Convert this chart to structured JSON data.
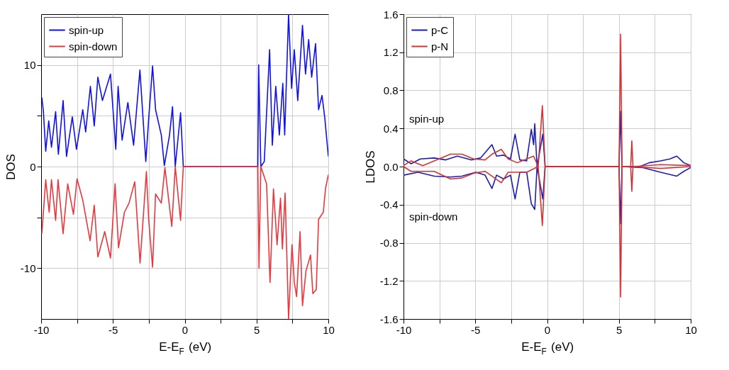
{
  "chart_data": [
    {
      "type": "line",
      "xlabel": "E-E$_{F}$ (eV)",
      "ylabel": "DOS",
      "xlim": [
        -10,
        10
      ],
      "ylim": [
        -15,
        15
      ],
      "xticks": [
        -10,
        {
          "value": -7.5,
          "label": null
        },
        -5,
        {
          "value": -2.5,
          "label": null
        },
        0,
        {
          "value": 2.5,
          "label": null
        },
        5,
        {
          "value": 7.5,
          "label": null
        },
        10
      ],
      "yticks": [
        -10,
        {
          "value": -5,
          "label": null
        },
        0,
        {
          "value": 5,
          "label": null
        },
        10
      ],
      "grid": true,
      "legend": "top left",
      "series": [
        {
          "name": "spin-up",
          "color": "#1010e8",
          "x": [
            -9.95,
            -9.84,
            -9.68,
            -9.47,
            -9.28,
            -8.99,
            -8.8,
            -8.47,
            -8.23,
            -7.83,
            -7.54,
            -7.1,
            -6.9,
            -6.57,
            -6.3,
            -6.05,
            -5.73,
            -5.17,
            -4.8,
            -4.64,
            -4.36,
            -3.96,
            -3.56,
            -3.12,
            -2.71,
            -2.51,
            -2.24,
            -2.03,
            -1.63,
            -1.42,
            -1.06,
            -0.85,
            -0.66,
            -0.29,
            -0.1,
            5.09,
            5.15,
            5.3,
            5.54,
            5.91,
            6.1,
            6.34,
            6.59,
            6.83,
            6.96,
            7.23,
            7.44,
            7.63,
            7.87,
            8.2,
            8.41,
            8.63,
            8.84,
            9.11,
            9.32,
            9.56,
            9.76,
            10
          ],
          "values": [
            6.8,
            5.4,
            1.5,
            4.5,
            1.9,
            5.4,
            1.2,
            6.5,
            1.0,
            4.9,
            1.7,
            5.6,
            3.4,
            7.9,
            4.0,
            8.8,
            6.5,
            9.1,
            1.7,
            7.9,
            2.6,
            6.3,
            2.1,
            9.5,
            0.5,
            4.7,
            9.9,
            5.6,
            3.1,
            0.1,
            3.1,
            5.9,
            0,
            5.3,
            0,
            0,
            10,
            0,
            0.5,
            11.5,
            2.1,
            7.9,
            3.1,
            8.2,
            3.1,
            15,
            7.7,
            11.5,
            6.5,
            13.9,
            9.1,
            12.5,
            8.8,
            12.1,
            5.6,
            7.0,
            4.7,
            1.0
          ]
        },
        {
          "name": "spin-down",
          "color": "#e8383d",
          "x": [
            -9.95,
            -9.68,
            -9.44,
            -9.28,
            -8.99,
            -8.82,
            -8.47,
            -8.15,
            -7.75,
            -7.5,
            -7.1,
            -6.59,
            -6.3,
            -6.05,
            -5.57,
            -5.17,
            -4.85,
            -4.61,
            -4.2,
            -3.88,
            -3.48,
            -3.11,
            -2.67,
            -2.51,
            -2.24,
            -2.03,
            -1.63,
            -1.38,
            -0.9,
            -0.66,
            -0.29,
            -0.1,
            5.09,
            5.17,
            5.3,
            5.7,
            5.94,
            6.18,
            6.43,
            6.67,
            6.8,
            6.99,
            7.23,
            7.47,
            7.63,
            7.79,
            8.03,
            8.2,
            8.44,
            8.76,
            8.92,
            9.16,
            9.32,
            9.65,
            9.8,
            10
          ],
          "values": [
            -6.6,
            -1.3,
            -4.5,
            -1.3,
            -5.3,
            -1.3,
            -6.6,
            -1.7,
            -4.7,
            -1.2,
            -3.3,
            -7.3,
            -3.8,
            -8.9,
            -6.4,
            -9.0,
            -1.7,
            -8.0,
            -4.5,
            -3.6,
            -1.5,
            -9.5,
            -0.5,
            -5.2,
            -9.9,
            -2.7,
            -3.6,
            -0.1,
            -5.9,
            0,
            -5.3,
            0,
            0,
            -10,
            0,
            -1.7,
            -11.4,
            -2.2,
            -7.7,
            -3.1,
            -8.1,
            -2.6,
            -15,
            -7.7,
            -11.4,
            -12.8,
            -6.4,
            -13.7,
            -10.3,
            -8.7,
            -12.5,
            -12.1,
            -5.2,
            -4.5,
            -2.2,
            -0.8
          ]
        }
      ]
    },
    {
      "type": "line",
      "xlabel": "E-E$_{F}$ (eV)",
      "ylabel": "LDOS",
      "xlim": [
        -10,
        10
      ],
      "ylim": [
        -1.6,
        1.6
      ],
      "xticks": [
        -10,
        {
          "value": -7.5,
          "label": null
        },
        -5,
        {
          "value": -2.5,
          "label": null
        },
        0,
        {
          "value": 2.5,
          "label": null
        },
        5,
        {
          "value": 7.5,
          "label": null
        },
        10
      ],
      "yticks": [
        -1.6,
        -1.2,
        -0.8,
        -0.4,
        {
          "value": 0,
          "label": "0.0"
        },
        0.4,
        0.8,
        1.2,
        1.6
      ],
      "grid": true,
      "legend": "top left",
      "annotations": [
        "spin-up",
        "spin-down"
      ],
      "series": [
        {
          "name": "p-C",
          "color": "#1c1cb0",
          "x": [
            -10,
            -9.47,
            -8.83,
            -7.86,
            -7.06,
            -6.25,
            -5.29,
            -4.64,
            -3.84,
            -3.52,
            -3.03,
            -2.55,
            -2.23,
            -1.9,
            -1.42,
            -1.1,
            -0.94,
            -0.86,
            -0.7,
            -0.3,
            -0.14,
            5.01,
            5.12,
            5.22,
            6.46,
            7.1,
            7.9,
            8.55,
            9.03,
            9.52,
            10
          ],
          "values": [
            0.08,
            0.03,
            0.08,
            0.09,
            0.07,
            0.11,
            0.07,
            0.09,
            0.23,
            0.11,
            0.12,
            0.08,
            0.34,
            0.07,
            0.06,
            0.39,
            0.23,
            0.45,
            0,
            0.34,
            0,
            0,
            0.58,
            0,
            0,
            0.04,
            0.06,
            0.08,
            0.11,
            0.04,
            0.01
          ]
        },
        {
          "color": "#1c1cb0",
          "x": [
            -10,
            -8.99,
            -7.86,
            -6.73,
            -5.93,
            -4.96,
            -4.32,
            -3.84,
            -3.52,
            -3.03,
            -2.55,
            -2.23,
            -1.9,
            -1.42,
            -1.1,
            -0.86,
            -0.7,
            -0.3,
            -0.14,
            5.01,
            5.12,
            5.22,
            6.62,
            7.9,
            9.03,
            9.52,
            10
          ],
          "values": [
            -0.09,
            -0.06,
            -0.1,
            -0.11,
            -0.1,
            -0.06,
            -0.09,
            -0.23,
            -0.09,
            -0.13,
            -0.09,
            -0.34,
            -0.06,
            -0.06,
            -0.39,
            -0.45,
            0,
            -0.34,
            0,
            0,
            -0.6,
            0,
            -0.01,
            -0.06,
            -0.1,
            -0.05,
            -0.01
          ]
        },
        {
          "name": "p-N",
          "color": "#d03535",
          "x": [
            -10,
            -9.47,
            -8.66,
            -7.86,
            -6.73,
            -5.93,
            -5.12,
            -4.32,
            -3.84,
            -3.19,
            -2.71,
            -2.07,
            -1.42,
            -0.94,
            -0.62,
            -0.33,
            -0.14,
            5.01,
            5.12,
            5.22,
            5.82,
            5.9,
            5.98,
            7.9,
            10
          ],
          "values": [
            0.01,
            0.06,
            0.01,
            0.06,
            0.13,
            0.13,
            0.08,
            0.07,
            0.13,
            0.18,
            0.08,
            0.04,
            0.08,
            0.11,
            0,
            0.64,
            0,
            0,
            1.39,
            0,
            0,
            0.27,
            0,
            0.02,
            0.01
          ]
        },
        {
          "color": "#d03535",
          "x": [
            -10,
            -9.47,
            -7.86,
            -6.73,
            -5.93,
            -5.12,
            -4.32,
            -3.19,
            -2.71,
            -1.42,
            -0.62,
            -0.33,
            -0.14,
            5.01,
            5.12,
            5.22,
            5.82,
            5.9,
            5.98,
            7.9,
            10
          ],
          "values": [
            0,
            -0.05,
            -0.05,
            -0.13,
            -0.12,
            -0.07,
            -0.05,
            -0.17,
            -0.06,
            -0.06,
            0,
            -0.62,
            0,
            0,
            -1.37,
            0,
            0,
            -0.26,
            0,
            -0.02,
            0
          ]
        }
      ]
    }
  ]
}
